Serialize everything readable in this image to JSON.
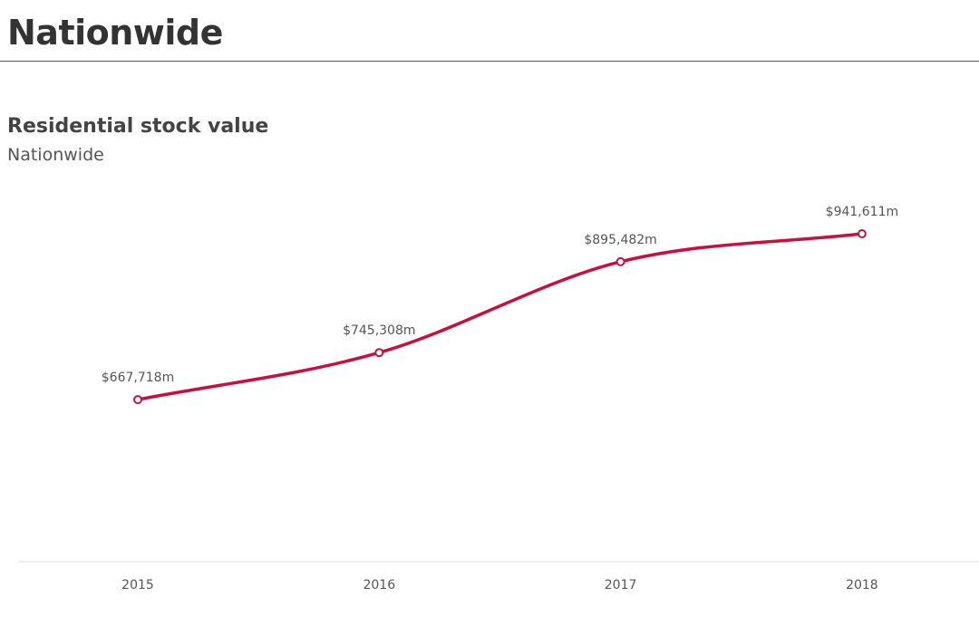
{
  "page": {
    "title": "Nationwide"
  },
  "chart_data": {
    "type": "line",
    "title": "Residential stock value",
    "subtitle": "Nationwide",
    "categories": [
      "2015",
      "2016",
      "2017",
      "2018"
    ],
    "values": [
      667718,
      745308,
      895482,
      941611
    ],
    "data_labels": [
      "$667,718m",
      "$745,308m",
      "$895,482m",
      "$941,611m"
    ],
    "unit": "$m",
    "xlabel": "",
    "ylabel": "",
    "ylim": [
      400000,
      1000000
    ],
    "grid": false,
    "legend": "none",
    "line_color": "#c8103e"
  }
}
